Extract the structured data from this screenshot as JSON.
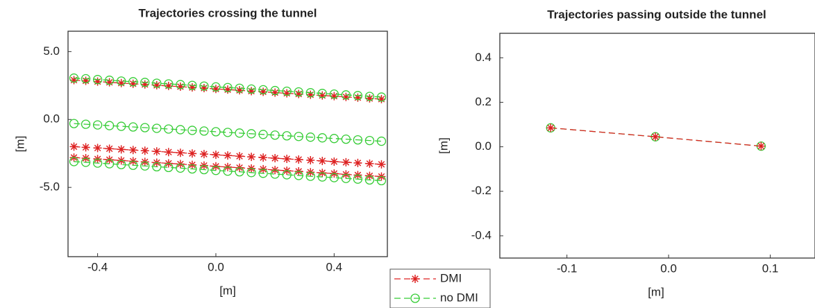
{
  "chart_data": [
    {
      "type": "line",
      "title": "Trajectories crossing the tunnel",
      "xlabel": "[m]",
      "ylabel": "[m]",
      "xlim": [
        -0.5,
        0.58
      ],
      "ylim": [
        -10.1,
        6.5
      ],
      "xticks": [
        -0.4,
        {
          "value": 0,
          "label": "0.0"
        },
        0.4
      ],
      "yticks": [
        {
          "value": 5,
          "label": "5.0"
        },
        {
          "value": 0,
          "label": "0.0"
        },
        {
          "value": -5,
          "label": "-5.0"
        }
      ],
      "x": [
        -0.48,
        -0.44,
        -0.4,
        -0.36,
        -0.32,
        -0.28,
        -0.24,
        -0.2,
        -0.16,
        -0.12,
        -0.08,
        -0.04,
        0,
        0.04,
        0.08,
        0.12,
        0.16,
        0.2,
        0.24,
        0.28,
        0.32,
        0.36,
        0.4,
        0.44,
        0.48,
        0.52,
        0.56
      ],
      "series": [
        {
          "name": "DMI",
          "color": "#dd2222",
          "marker": "star",
          "values": [
            2.9,
            2.85,
            2.79,
            2.74,
            2.68,
            2.63,
            2.58,
            2.52,
            2.47,
            2.42,
            2.36,
            2.31,
            2.25,
            2.2,
            2.15,
            2.09,
            2.04,
            1.98,
            1.93,
            1.88,
            1.82,
            1.77,
            1.72,
            1.66,
            1.61,
            1.55,
            1.5
          ]
        },
        {
          "name": "DMI",
          "color": "#dd2222",
          "marker": "star",
          "values": [
            -2,
            -2.05,
            -2.1,
            -2.15,
            -2.2,
            -2.25,
            -2.3,
            -2.35,
            -2.4,
            -2.45,
            -2.5,
            -2.55,
            -2.6,
            -2.65,
            -2.7,
            -2.75,
            -2.8,
            -2.85,
            -2.9,
            -2.95,
            -3,
            -3.05,
            -3.1,
            -3.15,
            -3.2,
            -3.25,
            -3.3
          ]
        },
        {
          "name": "DMI",
          "color": "#dd2222",
          "marker": "star",
          "values": [
            -2.8,
            -2.85,
            -2.91,
            -2.96,
            -3.02,
            -3.07,
            -3.12,
            -3.18,
            -3.23,
            -3.28,
            -3.34,
            -3.39,
            -3.45,
            -3.5,
            -3.55,
            -3.61,
            -3.66,
            -3.72,
            -3.77,
            -3.82,
            -3.88,
            -3.93,
            -3.98,
            -4.04,
            -4.09,
            -4.15,
            -4.2
          ]
        },
        {
          "name": "no DMI",
          "color": "#33cc33",
          "marker": "circle",
          "values": [
            3.05,
            3,
            2.94,
            2.89,
            2.83,
            2.78,
            2.73,
            2.67,
            2.62,
            2.57,
            2.51,
            2.46,
            2.4,
            2.35,
            2.3,
            2.24,
            2.19,
            2.13,
            2.08,
            2.03,
            1.97,
            1.92,
            1.87,
            1.81,
            1.76,
            1.7,
            1.65
          ]
        },
        {
          "name": "no DMI",
          "color": "#33cc33",
          "marker": "circle",
          "values": [
            -0.3,
            -0.35,
            -0.4,
            -0.45,
            -0.5,
            -0.55,
            -0.6,
            -0.65,
            -0.7,
            -0.75,
            -0.8,
            -0.85,
            -0.9,
            -0.95,
            -1,
            -1.05,
            -1.1,
            -1.15,
            -1.2,
            -1.25,
            -1.3,
            -1.35,
            -1.4,
            -1.45,
            -1.5,
            -1.55,
            -1.6
          ]
        },
        {
          "name": "no DMI",
          "color": "#33cc33",
          "marker": "circle",
          "values": [
            -3.1,
            -3.15,
            -3.21,
            -3.26,
            -3.32,
            -3.37,
            -3.42,
            -3.48,
            -3.53,
            -3.58,
            -3.64,
            -3.69,
            -3.75,
            -3.8,
            -3.85,
            -3.91,
            -3.96,
            -4.02,
            -4.07,
            -4.12,
            -4.18,
            -4.23,
            -4.28,
            -4.34,
            -4.39,
            -4.45,
            -4.5
          ]
        }
      ]
    },
    {
      "type": "line",
      "title": "Trajectories  passing outside the tunnel",
      "xlabel": "[m]",
      "ylabel": "[m]",
      "xlim": [
        -0.166,
        0.144
      ],
      "ylim": [
        -0.5,
        0.51
      ],
      "xticks": [
        -0.1,
        {
          "value": 0,
          "label": "0.0"
        },
        0.1
      ],
      "yticks": [
        0.4,
        0.2,
        {
          "value": 0,
          "label": "0.0"
        },
        -0.2,
        -0.4
      ],
      "x": [
        -0.116,
        -0.013,
        0.091
      ],
      "series": [
        {
          "name": "no DMI",
          "color": "#33cc33",
          "marker": "circle",
          "values": [
            0.085,
            0.045,
            0.003
          ]
        },
        {
          "name": "DMI",
          "color": "#dd2222",
          "marker": "star",
          "values": [
            0.085,
            0.045,
            0.003
          ]
        }
      ]
    }
  ]
}
